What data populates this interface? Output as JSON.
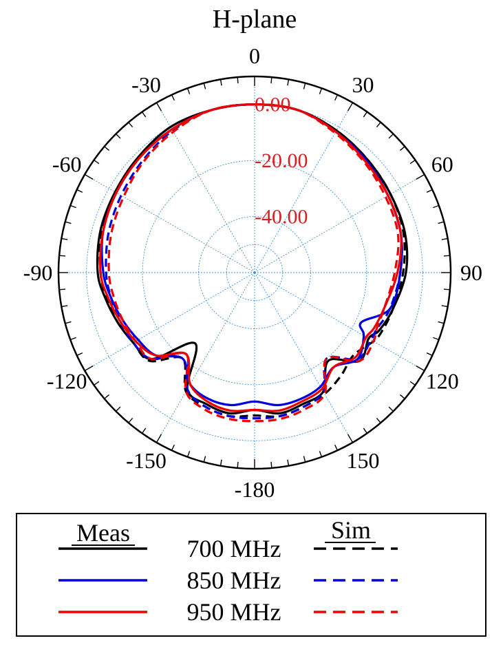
{
  "chart_data": {
    "type": "polar-line",
    "title": "H-plane",
    "angle_ticks": [
      {
        "value": 0,
        "label": "0"
      },
      {
        "value": 30,
        "label": "30"
      },
      {
        "value": 60,
        "label": "60"
      },
      {
        "value": 90,
        "label": "90"
      },
      {
        "value": 120,
        "label": "120"
      },
      {
        "value": 150,
        "label": "150"
      },
      {
        "value": 180,
        "label": "-180"
      },
      {
        "value": -150,
        "label": "-150"
      },
      {
        "value": -120,
        "label": "-120"
      },
      {
        "value": -90,
        "label": "-90"
      },
      {
        "value": -60,
        "label": "-60"
      },
      {
        "value": -30,
        "label": "-30"
      }
    ],
    "radial_ticks": [
      {
        "value": 0,
        "label": "0.00"
      },
      {
        "value": -20,
        "label": "-20.00"
      },
      {
        "value": -40,
        "label": "-40.00"
      }
    ],
    "r_range": [
      -60,
      10
    ],
    "grid": true,
    "legend": {
      "position": "bottom",
      "meas_header": "Meas",
      "sim_header": "Sim",
      "rows": [
        {
          "label": "700 MHz",
          "color": "#000000"
        },
        {
          "label": "850 MHz",
          "color": "#0000dd"
        },
        {
          "label": "950 MHz",
          "color": "#ee0000"
        }
      ]
    },
    "series": [
      {
        "freq": "700 MHz",
        "kind": "Meas",
        "color": "#000000",
        "dash": false,
        "angles": [
          0,
          15,
          30,
          45,
          60,
          75,
          90,
          105,
          115,
          120,
          130,
          140,
          150,
          160,
          170,
          180,
          -170,
          -160,
          -150,
          -140,
          -130,
          -120,
          -110,
          -100,
          -90,
          -75,
          -60,
          -45,
          -30,
          -15
        ],
        "values": [
          0,
          0,
          -1.5,
          -3,
          -4,
          -4.5,
          -6,
          -9,
          -11,
          -13,
          -11,
          -19,
          -11,
          -10,
          -9,
          -11,
          -9,
          -10,
          -12,
          -27,
          -12,
          -10,
          -8,
          -6,
          -4,
          -3,
          -2.5,
          -1.5,
          0,
          0
        ]
      },
      {
        "freq": "700 MHz",
        "kind": "Sim",
        "color": "#000000",
        "dash": true,
        "angles": [
          0,
          15,
          30,
          45,
          60,
          75,
          90,
          105,
          115,
          120,
          130,
          140,
          150,
          160,
          170,
          180,
          -170,
          -160,
          -150,
          -140,
          -130,
          -120,
          -110,
          -100,
          -90,
          -75,
          -60,
          -45,
          -30,
          -15
        ],
        "values": [
          0,
          0,
          -1.5,
          -3,
          -4,
          -5,
          -7,
          -9,
          -10,
          -11,
          -14,
          -12,
          -10,
          -9,
          -8,
          -9,
          -8,
          -9,
          -11,
          -20,
          -11,
          -10,
          -8,
          -6.5,
          -5,
          -3.5,
          -3,
          -2,
          -1,
          0
        ]
      },
      {
        "freq": "850 MHz",
        "kind": "Meas",
        "color": "#0000dd",
        "dash": false,
        "angles": [
          0,
          15,
          30,
          45,
          60,
          75,
          90,
          105,
          115,
          120,
          130,
          140,
          150,
          160,
          170,
          180,
          -170,
          -160,
          -150,
          -140,
          -130,
          -120,
          -110,
          -100,
          -90,
          -75,
          -60,
          -45,
          -30,
          -15
        ],
        "values": [
          0,
          0,
          -2,
          -3.5,
          -5,
          -6,
          -8,
          -10,
          -18,
          -15,
          -12,
          -16,
          -13,
          -12,
          -12,
          -14,
          -12,
          -12,
          -14,
          -20,
          -14,
          -12,
          -10,
          -8,
          -6,
          -4,
          -3,
          -2,
          -1,
          0
        ]
      },
      {
        "freq": "850 MHz",
        "kind": "Sim",
        "color": "#0000dd",
        "dash": true,
        "angles": [
          0,
          15,
          30,
          45,
          60,
          75,
          90,
          105,
          115,
          120,
          130,
          140,
          150,
          160,
          170,
          180,
          -170,
          -160,
          -150,
          -140,
          -130,
          -120,
          -110,
          -100,
          -90,
          -75,
          -60,
          -45,
          -30,
          -15
        ],
        "values": [
          0,
          0,
          -2,
          -4,
          -5,
          -6,
          -8,
          -10,
          -12,
          -12,
          -12,
          -20,
          -11,
          -9,
          -8,
          -8,
          -8,
          -9,
          -12,
          -22,
          -12,
          -10,
          -9,
          -8,
          -7,
          -6,
          -5,
          -3.5,
          -1.5,
          0
        ]
      },
      {
        "freq": "950 MHz",
        "kind": "Meas",
        "color": "#ee0000",
        "dash": false,
        "angles": [
          0,
          15,
          30,
          45,
          60,
          75,
          90,
          105,
          115,
          120,
          130,
          140,
          150,
          160,
          170,
          180,
          -170,
          -160,
          -150,
          -140,
          -130,
          -120,
          -110,
          -100,
          -90,
          -75,
          -60,
          -45,
          -30,
          -15
        ],
        "values": [
          0,
          0,
          -2,
          -4,
          -5,
          -6,
          -9,
          -12,
          -13,
          -14,
          -13,
          -16,
          -12,
          -11,
          -10,
          -11,
          -10,
          -11,
          -14,
          -22,
          -14,
          -11,
          -9,
          -7,
          -5,
          -4,
          -3,
          -2,
          -1,
          0
        ]
      },
      {
        "freq": "950 MHz",
        "kind": "Sim",
        "color": "#ee0000",
        "dash": true,
        "angles": [
          0,
          15,
          30,
          45,
          60,
          75,
          90,
          105,
          115,
          120,
          130,
          140,
          150,
          160,
          170,
          180,
          -170,
          -160,
          -150,
          -140,
          -130,
          -120,
          -110,
          -100,
          -90,
          -75,
          -60,
          -45,
          -30,
          -15
        ],
        "values": [
          0,
          0,
          -2.5,
          -4.5,
          -6,
          -7,
          -10,
          -12,
          -12,
          -11,
          -11,
          -20,
          -10,
          -8,
          -7,
          -7,
          -7,
          -8,
          -11,
          -22,
          -12,
          -11,
          -10,
          -9,
          -8,
          -7,
          -6,
          -4,
          -2,
          0
        ]
      }
    ]
  }
}
